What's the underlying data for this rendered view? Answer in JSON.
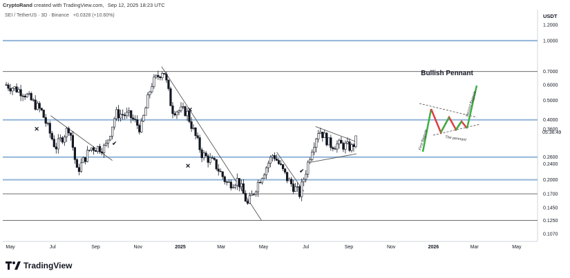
{
  "header": {
    "author": "CryptoRand",
    "created_text": "created with TradingView.com,",
    "timestamp": "Sep 12, 2025 18:23 UTC"
  },
  "symbol_line": {
    "pair": "SEI / TetherUS · 3D · Binance",
    "change": "+0.0328 (+10.60%)"
  },
  "price_axis": {
    "currency": "USDT",
    "ticks": [
      "1.2000",
      "1.0000",
      "0.7000",
      "0.6000",
      "0.5000",
      "0.4000",
      "0.3600",
      "0.2600",
      "0.2400",
      "0.2000",
      "0.1700",
      "0.1450",
      "0.1250",
      "0.1070"
    ],
    "countdown": "05:36:49"
  },
  "time_axis": {
    "labels": [
      "May",
      "Jul",
      "Sep",
      "Nov",
      "2025",
      "Mar",
      "May",
      "Jul",
      "Sep",
      "Nov",
      "2026",
      "Mar",
      "May"
    ]
  },
  "inset": {
    "title": "Bullish Pennant",
    "label_first": "First flagpole",
    "label_second": "Second flagpole",
    "label_pennant": "The pennant"
  },
  "marks": {
    "cross": "✕",
    "check": "✔"
  },
  "colors": {
    "up": "#131722",
    "down": "#131722",
    "blue_level": "#90b4d8",
    "gray_level": "#6b6b6b",
    "trend": "#555555",
    "inset_red": "#e03c3c",
    "inset_green": "#3cb043"
  },
  "chart_data": {
    "type": "candlestick",
    "title": "SEI / TetherUS · 3D · Binance",
    "y_scale": "log",
    "ylim": [
      0.1,
      1.3
    ],
    "x_range": [
      "2024-04-20",
      "2026-05-31"
    ],
    "horizontal_levels": {
      "blue": [
        1.0,
        0.4,
        0.26,
        0.2
      ],
      "gray": [
        0.7,
        0.17,
        0.125
      ]
    },
    "approx_closes": [
      {
        "date": "2024-04-25",
        "close": 0.6
      },
      {
        "date": "2024-05-20",
        "close": 0.55
      },
      {
        "date": "2024-06-15",
        "close": 0.44
      },
      {
        "date": "2024-07-05",
        "close": 0.29
      },
      {
        "date": "2024-07-25",
        "close": 0.37
      },
      {
        "date": "2024-08-05",
        "close": 0.22
      },
      {
        "date": "2024-08-25",
        "close": 0.29
      },
      {
        "date": "2024-09-15",
        "close": 0.29
      },
      {
        "date": "2024-09-30",
        "close": 0.43
      },
      {
        "date": "2024-10-20",
        "close": 0.42
      },
      {
        "date": "2024-11-05",
        "close": 0.36
      },
      {
        "date": "2024-11-20",
        "close": 0.6
      },
      {
        "date": "2024-12-08",
        "close": 0.72
      },
      {
        "date": "2024-12-20",
        "close": 0.45
      },
      {
        "date": "2025-01-10",
        "close": 0.44
      },
      {
        "date": "2025-02-01",
        "close": 0.27
      },
      {
        "date": "2025-02-20",
        "close": 0.24
      },
      {
        "date": "2025-03-10",
        "close": 0.19
      },
      {
        "date": "2025-03-25",
        "close": 0.2
      },
      {
        "date": "2025-04-08",
        "close": 0.15
      },
      {
        "date": "2025-04-25",
        "close": 0.2
      },
      {
        "date": "2025-05-15",
        "close": 0.27
      },
      {
        "date": "2025-06-05",
        "close": 0.2
      },
      {
        "date": "2025-06-22",
        "close": 0.17
      },
      {
        "date": "2025-07-10",
        "close": 0.29
      },
      {
        "date": "2025-07-20",
        "close": 0.36
      },
      {
        "date": "2025-08-05",
        "close": 0.3
      },
      {
        "date": "2025-08-20",
        "close": 0.3
      },
      {
        "date": "2025-09-05",
        "close": 0.29
      },
      {
        "date": "2025-09-12",
        "close": 0.32
      }
    ]
  }
}
